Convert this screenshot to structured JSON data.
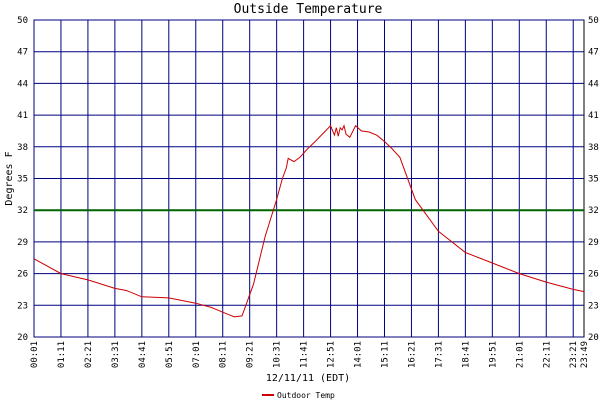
{
  "chart_data": {
    "type": "line",
    "title": "Outside Temperature",
    "xlabel": "12/11/11 (EDT)",
    "ylabel": "Degrees F",
    "ylim": [
      20,
      50
    ],
    "yticks": [
      20,
      23,
      26,
      29,
      32,
      35,
      38,
      41,
      44,
      47,
      50
    ],
    "xticks": [
      "00:01",
      "01:11",
      "02:21",
      "03:31",
      "04:41",
      "05:51",
      "07:01",
      "08:11",
      "09:21",
      "10:31",
      "11:41",
      "12:51",
      "14:01",
      "15:11",
      "16:21",
      "17:31",
      "18:41",
      "19:51",
      "21:01",
      "22:11",
      "23:21",
      "23:49"
    ],
    "xrange_minutes": [
      1,
      1429
    ],
    "grid": true,
    "reference_line": {
      "value": 32,
      "color": "#006400"
    },
    "colors": {
      "grid": "#000080",
      "series": "#cc0000",
      "frame": "#000000"
    },
    "legend_position": "bottom-center",
    "series": [
      {
        "name": "Outdoor Temp",
        "x": [
          1,
          71,
          141,
          211,
          241,
          281,
          351,
          421,
          461,
          481,
          501,
          521,
          541,
          571,
          601,
          631,
          646,
          656,
          661,
          676,
          691,
          711,
          731,
          771,
          781,
          786,
          791,
          796,
          801,
          806,
          811,
          821,
          836,
          851,
          871,
          891,
          911,
          931,
          951,
          991,
          1051,
          1121,
          1191,
          1261,
          1331,
          1401,
          1429
        ],
        "values": [
          27.4,
          26.0,
          25.4,
          24.6,
          24.4,
          23.8,
          23.7,
          23.2,
          22.8,
          22.5,
          22.2,
          21.9,
          22.0,
          25.0,
          29.5,
          33.0,
          35.0,
          36.0,
          36.9,
          36.6,
          37.0,
          37.8,
          38.5,
          40.0,
          39.1,
          39.8,
          39.0,
          39.8,
          39.6,
          40.0,
          39.2,
          38.9,
          40.0,
          39.5,
          39.4,
          39.1,
          38.5,
          37.8,
          37.0,
          33.0,
          30.0,
          28.0,
          27.0,
          26.0,
          25.2,
          24.5,
          24.3
        ]
      }
    ]
  }
}
